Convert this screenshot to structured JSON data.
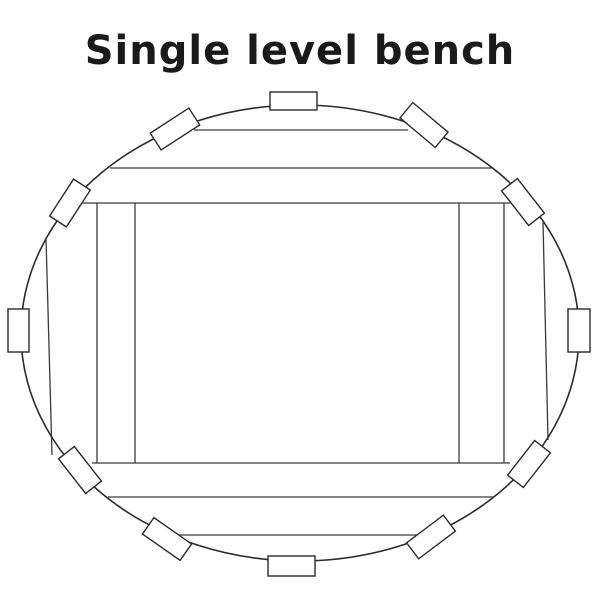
{
  "title": "Single level bench",
  "posts": [
    {
      "id": "top"
    },
    {
      "id": "upper-left-1"
    },
    {
      "id": "upper-right-1"
    },
    {
      "id": "upper-left-2"
    },
    {
      "id": "upper-right-2"
    },
    {
      "id": "left"
    },
    {
      "id": "right"
    },
    {
      "id": "lower-left-2"
    },
    {
      "id": "lower-right-2"
    },
    {
      "id": "lower-left-1"
    },
    {
      "id": "lower-right-1"
    },
    {
      "id": "bottom"
    }
  ]
}
